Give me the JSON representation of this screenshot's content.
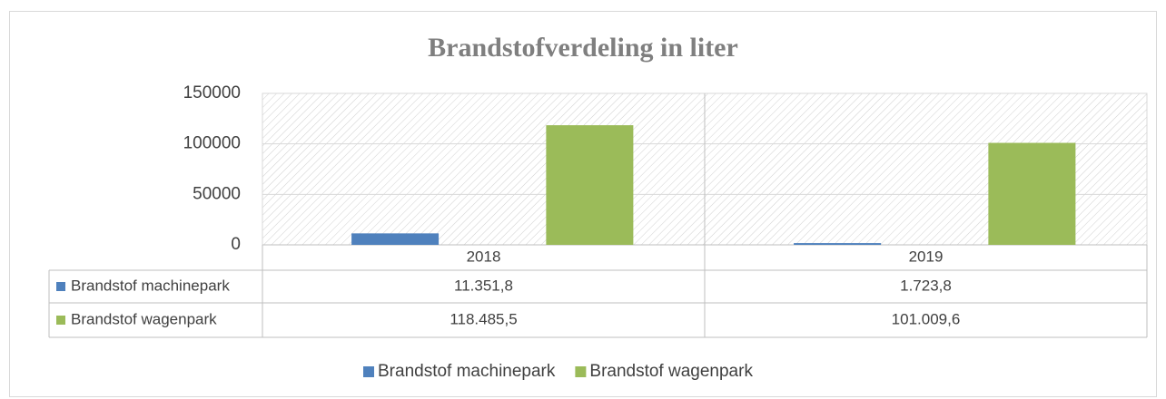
{
  "chart_data": {
    "type": "bar",
    "title": "Brandstofverdeling in liter",
    "categories": [
      "2018",
      "2019"
    ],
    "series": [
      {
        "name": "Brandstof machinepark",
        "color": "#4f81bd",
        "values": [
          11351.8,
          1723.8
        ],
        "value_labels": [
          "11.351,8",
          "1.723,8"
        ]
      },
      {
        "name": "Brandstof wagenpark",
        "color": "#9bbb59",
        "values": [
          118485.5,
          101009.6
        ],
        "value_labels": [
          "118.485,5",
          "101.009,6"
        ]
      }
    ],
    "ylim": [
      0,
      150000
    ],
    "yticks": [
      0,
      50000,
      100000,
      150000
    ],
    "grid": true,
    "legend": "bottom"
  }
}
